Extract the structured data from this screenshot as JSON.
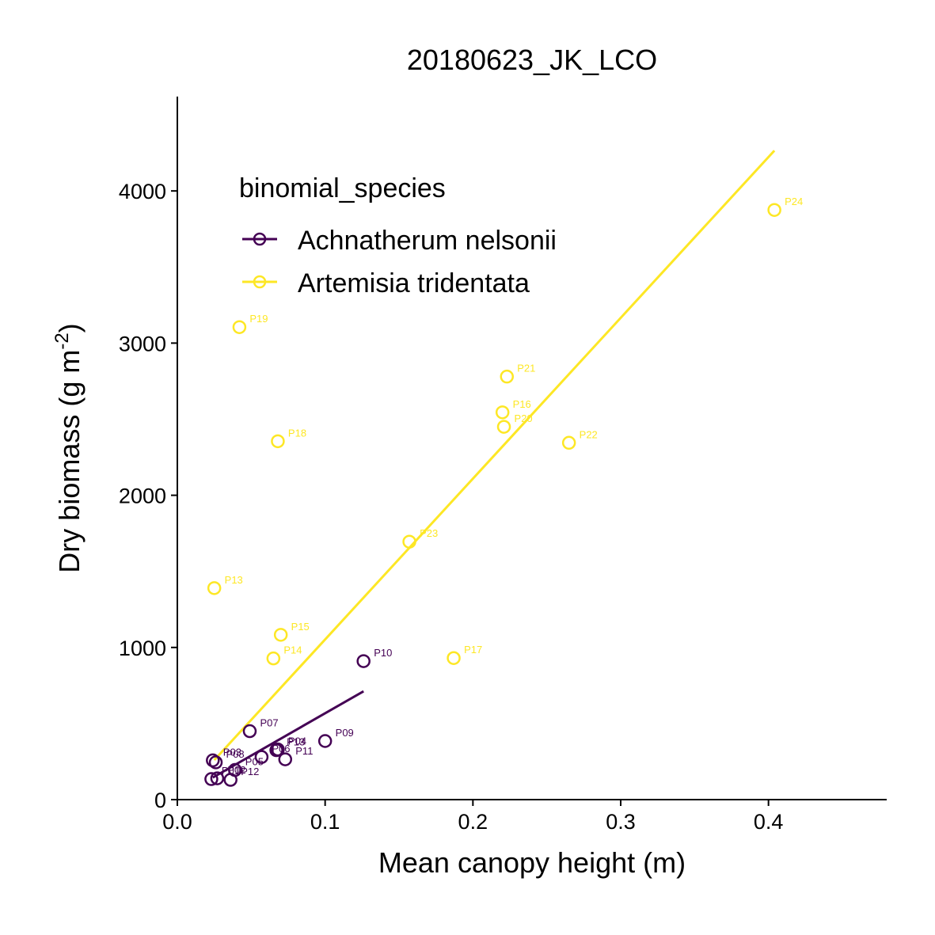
{
  "chart_data": {
    "type": "scatter",
    "title": "20180623_JK_LCO",
    "xlabel": "Mean canopy height (m)",
    "ylabel_main": "Dry biomass (g m",
    "ylabel_sup": "-2",
    "ylabel_tail": ")",
    "xlim": [
      0,
      0.48
    ],
    "ylim": [
      0,
      4620
    ],
    "x_ticks": [
      {
        "value": 0.0,
        "label": "0.0"
      },
      {
        "value": 0.1,
        "label": "0.1"
      },
      {
        "value": 0.2,
        "label": "0.2"
      },
      {
        "value": 0.3,
        "label": "0.3"
      },
      {
        "value": 0.4,
        "label": "0.4"
      }
    ],
    "y_ticks": [
      {
        "value": 0,
        "label": "0"
      },
      {
        "value": 1000,
        "label": "1000"
      },
      {
        "value": 2000,
        "label": "2000"
      },
      {
        "value": 3000,
        "label": "3000"
      },
      {
        "value": 4000,
        "label": "4000"
      }
    ],
    "grid": false,
    "legend": {
      "title": "binomial_species",
      "position": "top-left",
      "entries": [
        "Achnatherum nelsonii",
        "Artemisia tridentata"
      ]
    },
    "series": [
      {
        "name": "Achnatherum nelsonii",
        "color": "#440154",
        "points": [
          {
            "label": "P01",
            "x": 0.023,
            "y": 135
          },
          {
            "label": "P02",
            "x": 0.027,
            "y": 140
          },
          {
            "label": "P03",
            "x": 0.024,
            "y": 258
          },
          {
            "label": "P04",
            "x": 0.068,
            "y": 330
          },
          {
            "label": "P05",
            "x": 0.039,
            "y": 195
          },
          {
            "label": "P06",
            "x": 0.057,
            "y": 280
          },
          {
            "label": "P07",
            "x": 0.049,
            "y": 450
          },
          {
            "label": "P08",
            "x": 0.026,
            "y": 245
          },
          {
            "label": "P09",
            "x": 0.1,
            "y": 385
          },
          {
            "label": "P10",
            "x": 0.126,
            "y": 910
          },
          {
            "label": "P11",
            "x": 0.073,
            "y": 265
          },
          {
            "label": "P12",
            "x": 0.036,
            "y": 130
          },
          {
            "label": "P13",
            "x": 0.067,
            "y": 325
          }
        ],
        "fit": {
          "x": [
            0.024,
            0.126
          ],
          "y": [
            145,
            712
          ]
        }
      },
      {
        "name": "Artemisia tridentata",
        "color": "#FDE725",
        "points": [
          {
            "label": "P13",
            "x": 0.025,
            "y": 1390
          },
          {
            "label": "P14",
            "x": 0.065,
            "y": 928
          },
          {
            "label": "P15",
            "x": 0.07,
            "y": 1083
          },
          {
            "label": "P16",
            "x": 0.22,
            "y": 2545
          },
          {
            "label": "P17",
            "x": 0.187,
            "y": 930
          },
          {
            "label": "P18",
            "x": 0.068,
            "y": 2355
          },
          {
            "label": "P19",
            "x": 0.042,
            "y": 3105
          },
          {
            "label": "P20",
            "x": 0.221,
            "y": 2450
          },
          {
            "label": "P21",
            "x": 0.223,
            "y": 2780
          },
          {
            "label": "P22",
            "x": 0.265,
            "y": 2345
          },
          {
            "label": "P23",
            "x": 0.157,
            "y": 1695
          },
          {
            "label": "P24",
            "x": 0.404,
            "y": 3875
          }
        ],
        "fit": {
          "x": [
            0.025,
            0.404
          ],
          "y": [
            260,
            4265
          ]
        }
      }
    ]
  }
}
